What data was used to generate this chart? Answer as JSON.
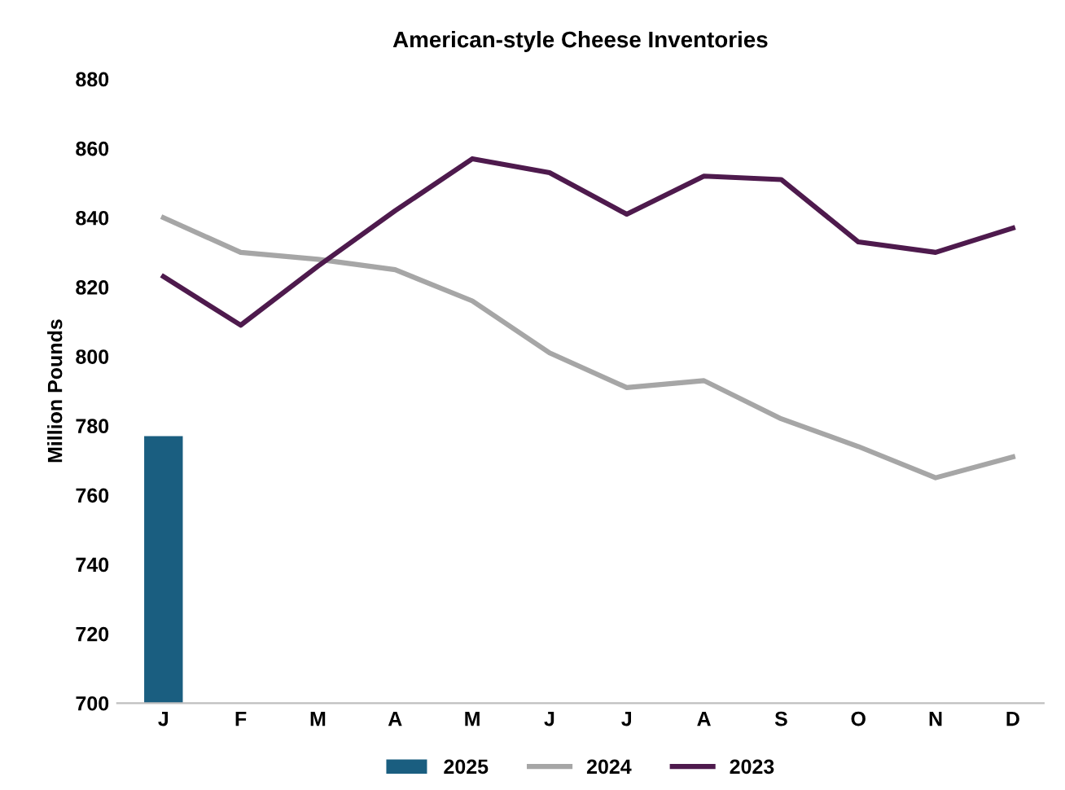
{
  "chart_data": {
    "type": "line",
    "title": "American-style Cheese Inventories",
    "ylabel": "Million Pounds",
    "categories": [
      "J",
      "F",
      "M",
      "A",
      "M",
      "J",
      "J",
      "A",
      "S",
      "O",
      "N",
      "D"
    ],
    "series": [
      {
        "name": "2025",
        "type": "bar",
        "color": "#1a5e80",
        "values": [
          777,
          null,
          null,
          null,
          null,
          null,
          null,
          null,
          null,
          null,
          null,
          null
        ]
      },
      {
        "name": "2024",
        "color": "#a6a6a6",
        "values": [
          840,
          830,
          828,
          825,
          816,
          801,
          791,
          793,
          782,
          774,
          765,
          771
        ]
      },
      {
        "name": "2023",
        "color": "#4e1a4d",
        "values": [
          823,
          809,
          826,
          842,
          857,
          853,
          841,
          852,
          851,
          833,
          830,
          837
        ]
      }
    ],
    "ylim": [
      700,
      880
    ],
    "yticks": [
      700,
      720,
      740,
      760,
      780,
      800,
      820,
      840,
      860,
      880
    ],
    "grid": false,
    "legend": "bottom",
    "marker": "none",
    "line_style": "solid"
  }
}
